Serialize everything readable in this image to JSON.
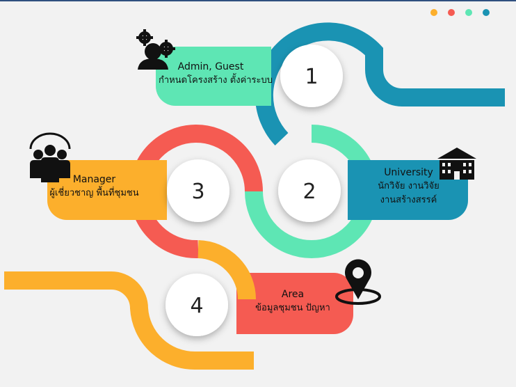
{
  "colors": {
    "teal": "#1a93b3",
    "mint": "#5ee6b4",
    "red": "#f55b52",
    "orange": "#fcaf2c",
    "circle": "#ffffff",
    "background": "#f2f2f2"
  },
  "dots": [
    "#fcaf2c",
    "#f55b52",
    "#5ee6b4",
    "#1a93b3"
  ],
  "steps": [
    {
      "number": "1",
      "title": "Admin, Guest",
      "subtitle": "กำหนดโครงสร้าง ตั้งค่าระบบ",
      "icon": "user-gears-icon"
    },
    {
      "number": "2",
      "title": "University",
      "subtitle": "นักวิจัย งานวิจัย",
      "subtitle2": "งานสร้างสรรค์",
      "icon": "building-icon"
    },
    {
      "number": "3",
      "title": "Manager",
      "subtitle": "ผู้เชี่ยวชาญ พื้นที่ชุมชน",
      "icon": "team-icon"
    },
    {
      "number": "4",
      "title": "Area",
      "subtitle": "ข้อมูลชุมชน ปัญหา",
      "icon": "map-pin-icon"
    }
  ]
}
